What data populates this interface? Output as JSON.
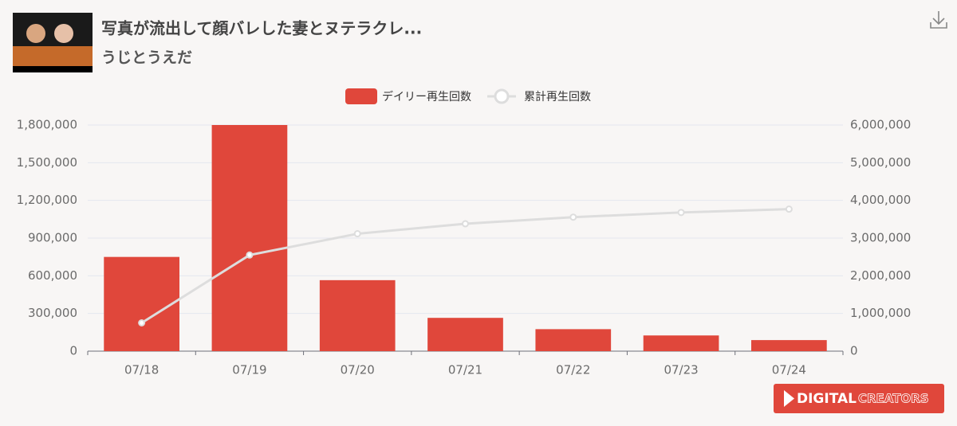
{
  "header": {
    "title": "写真が流出して顔バレした妻とヌテラクレ...",
    "channel": "うじとうえだ"
  },
  "watermark": {
    "brand": "DIGITAL",
    "suffix": "CREATORS"
  },
  "chart_data": {
    "type": "bar-line",
    "categories": [
      "07/18",
      "07/19",
      "07/20",
      "07/21",
      "07/22",
      "07/23",
      "07/24"
    ],
    "series": [
      {
        "name": "デイリー再生回数",
        "color": "#e0473b",
        "values": [
          750000,
          1800000,
          565000,
          265000,
          175000,
          125000,
          88000
        ]
      },
      {
        "name": "累計再生回数",
        "color": "#dddddd",
        "axis": "y2",
        "values": [
          750000,
          2550000,
          3115000,
          3380000,
          3555000,
          3680000,
          3768000
        ]
      }
    ],
    "ylim": [
      0,
      1800000
    ],
    "yticks": [
      0,
      {
        "value": 300000,
        "label": "300,000"
      },
      {
        "value": 600000,
        "label": "600,000"
      },
      {
        "value": 900000,
        "label": "900,000"
      },
      {
        "value": 1200000,
        "label": "1,200,000"
      },
      {
        "value": 1500000,
        "label": "1,500,000"
      },
      {
        "value": 1800000,
        "label": "1,800,000"
      }
    ],
    "y2lim": [
      0,
      6000000
    ],
    "y2ticks": [
      0,
      {
        "value": 1000000,
        "label": "1,000,000"
      },
      {
        "value": 2000000,
        "label": "2,000,000"
      },
      {
        "value": 3000000,
        "label": "3,000,000"
      },
      {
        "value": 4000000,
        "label": "4,000,000"
      },
      {
        "value": 5000000,
        "label": "5,000,000"
      },
      {
        "value": 6000000,
        "label": "6,000,000"
      }
    ],
    "grid": true,
    "legend": "top"
  }
}
